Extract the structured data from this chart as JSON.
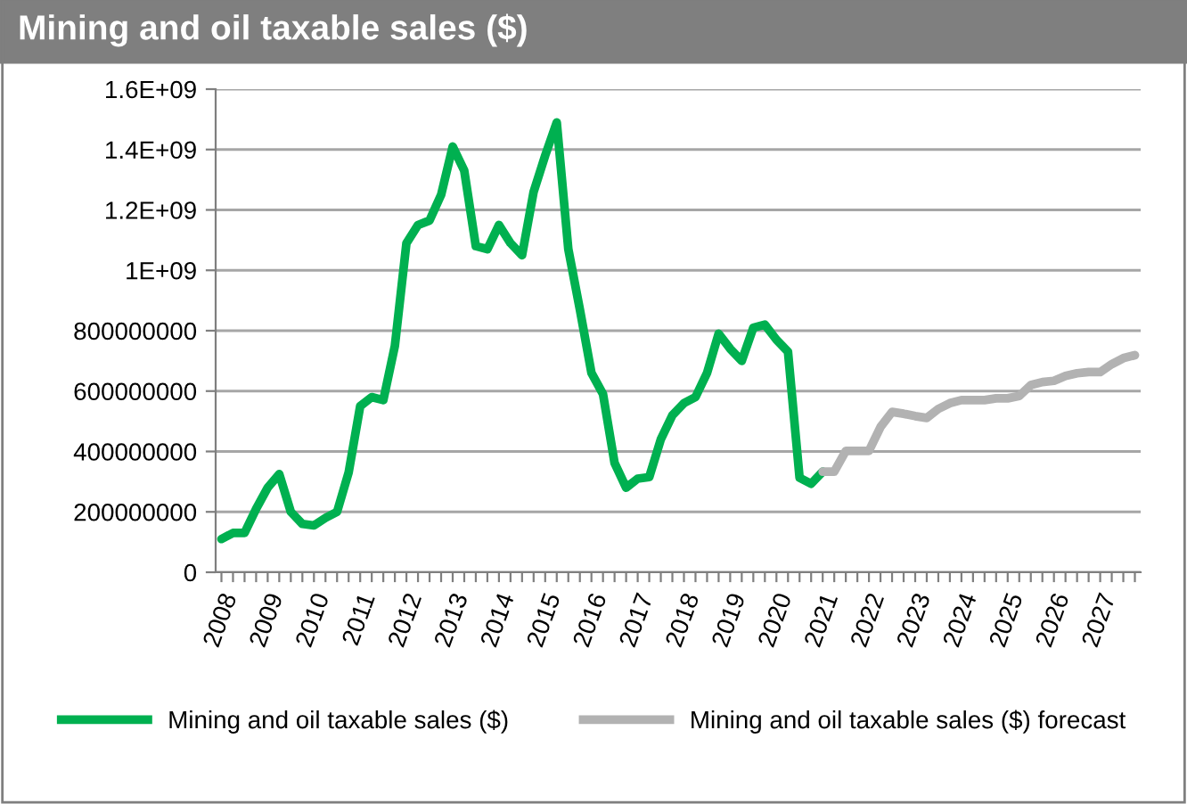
{
  "chart_data": {
    "type": "line",
    "title": "Mining and oil taxable sales ($)",
    "categories": [
      "2008",
      null,
      null,
      null,
      "2009",
      null,
      null,
      null,
      "2010",
      null,
      null,
      null,
      "2011",
      null,
      null,
      null,
      "2012",
      null,
      null,
      null,
      "2013",
      null,
      null,
      null,
      "2014",
      null,
      null,
      null,
      "2015",
      null,
      null,
      null,
      "2016",
      null,
      null,
      null,
      "2017",
      null,
      null,
      null,
      "2018",
      null,
      null,
      null,
      "2019",
      null,
      null,
      null,
      "2020",
      null,
      null,
      null,
      "2021",
      null,
      null,
      null,
      "2022",
      null,
      null,
      null,
      "2023",
      null,
      null,
      null,
      "2024",
      null,
      null,
      null,
      "2025",
      null,
      null,
      null,
      "2026",
      null,
      null,
      null,
      "2027",
      null,
      null,
      null
    ],
    "series": [
      {
        "name": "Mining and oil taxable sales ($)",
        "color": "#00b050",
        "values": [
          110000000,
          130000000,
          130000000,
          210000000,
          280000000,
          325000000,
          200000000,
          160000000,
          155000000,
          180000000,
          200000000,
          330000000,
          550000000,
          580000000,
          570000000,
          750000000,
          1090000000,
          1150000000,
          1165000000,
          1250000000,
          1410000000,
          1330000000,
          1080000000,
          1070000000,
          1150000000,
          1090000000,
          1050000000,
          1260000000,
          1380000000,
          1490000000,
          1070000000,
          870000000,
          660000000,
          590000000,
          362000000,
          280000000,
          310000000,
          315000000,
          440000000,
          520000000,
          560000000,
          580000000,
          660000000,
          790000000,
          740000000,
          700000000,
          810000000,
          820000000,
          770000000,
          730000000,
          313000000,
          293000000,
          333000000,
          null,
          null,
          null,
          null,
          null,
          null,
          null,
          null,
          null,
          null,
          null,
          null,
          null,
          null,
          null,
          null,
          null,
          null,
          null,
          null,
          null,
          null,
          null,
          null,
          null,
          null,
          null
        ]
      },
      {
        "name": "Mining and oil taxable sales ($) forecast",
        "color": "#b2b2b2",
        "values": [
          null,
          null,
          null,
          null,
          null,
          null,
          null,
          null,
          null,
          null,
          null,
          null,
          null,
          null,
          null,
          null,
          null,
          null,
          null,
          null,
          null,
          null,
          null,
          null,
          null,
          null,
          null,
          null,
          null,
          null,
          null,
          null,
          null,
          null,
          null,
          null,
          null,
          null,
          null,
          null,
          null,
          null,
          null,
          null,
          null,
          null,
          null,
          null,
          null,
          null,
          null,
          null,
          333000000,
          333000000,
          402000000,
          402000000,
          402000000,
          481000000,
          531000000,
          525000000,
          517000000,
          511000000,
          541000000,
          560000000,
          570000000,
          570000000,
          570000000,
          576000000,
          576000000,
          584000000,
          620000000,
          630000000,
          634000000,
          650000000,
          659000000,
          663000000,
          663000000,
          689000000,
          709000000,
          719000000
        ]
      }
    ],
    "ylim": [
      0,
      1600000000
    ],
    "yticks": [
      0,
      {
        "value": 200000000,
        "label": "200000000"
      },
      {
        "value": 400000000,
        "label": "400000000"
      },
      {
        "value": 600000000,
        "label": "600000000"
      },
      {
        "value": 800000000,
        "label": "800000000"
      },
      {
        "value": 1000000000,
        "label": "1E+09"
      },
      {
        "value": 1200000000,
        "label": "1.2E+09"
      },
      {
        "value": 1400000000,
        "label": "1.4E+09"
      },
      {
        "value": 1600000000,
        "label": "1.6E+09"
      }
    ],
    "grid": "y",
    "legend": "bottom",
    "marker": "none",
    "line_style": "solid"
  }
}
